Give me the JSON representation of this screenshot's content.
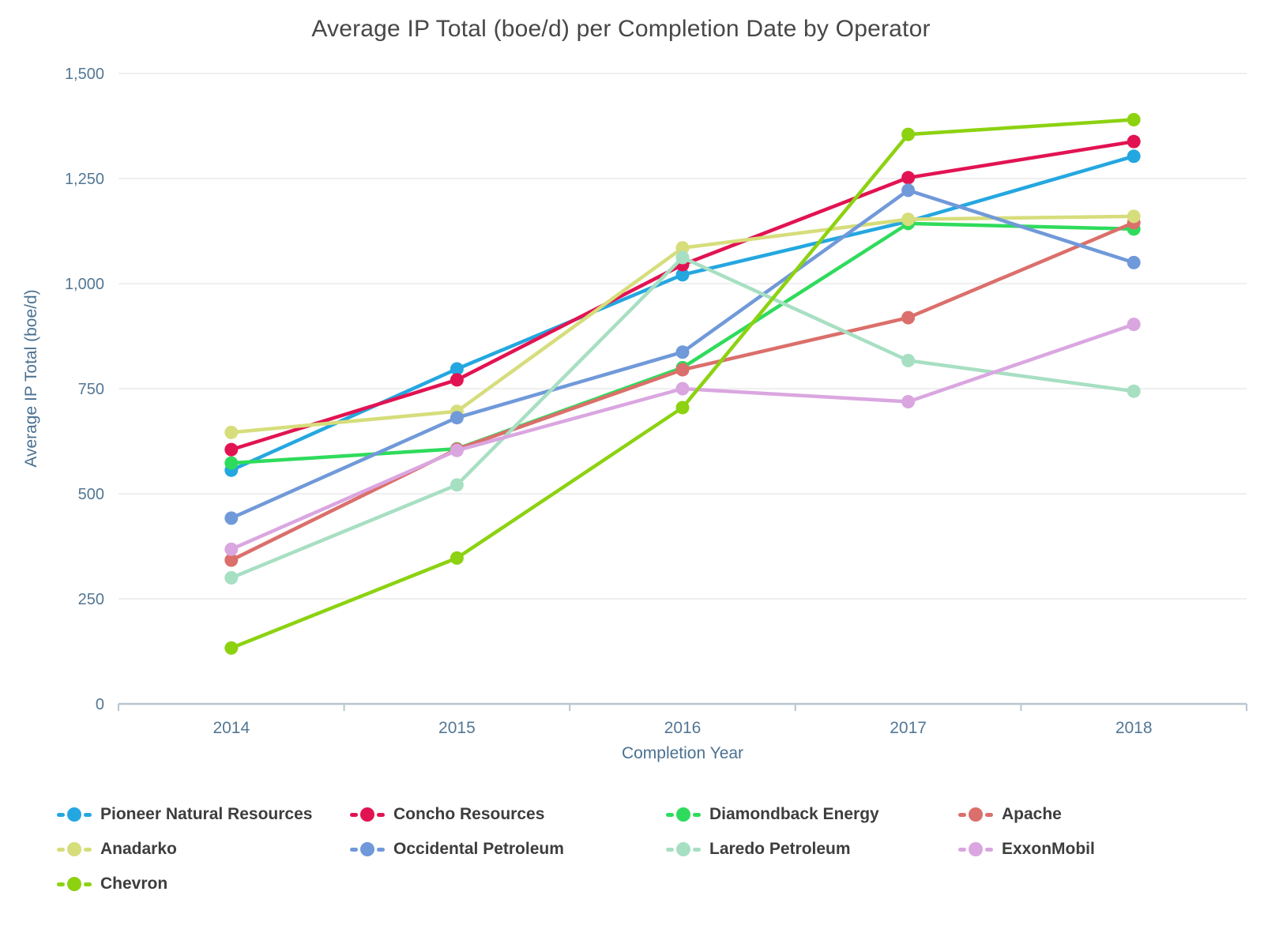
{
  "title": "Average IP Total (boe/d) per Completion Date by Operator",
  "chart_data": {
    "type": "line",
    "title": "Average IP Total (boe/d) per Completion Date by Operator",
    "xlabel": "Completion Year",
    "ylabel": "Average IP Total (boe/d)",
    "categories": [
      "2014",
      "2015",
      "2016",
      "2017",
      "2018"
    ],
    "ylim": [
      0,
      1500
    ],
    "y_tick_step": 250,
    "y_ticks": [
      0,
      250,
      500,
      750,
      1000,
      1250,
      1500
    ],
    "grid": true,
    "legend_position": "bottom",
    "series": [
      {
        "name": "Pioneer Natural Resources",
        "color": "#24a7e0",
        "values": [
          556,
          797,
          1021,
          1148,
          1303
        ]
      },
      {
        "name": "Concho Resources",
        "color": "#e21352",
        "values": [
          605,
          771,
          1045,
          1252,
          1338
        ]
      },
      {
        "name": "Diamondback Energy",
        "color": "#2fdb5c",
        "values": [
          573,
          607,
          800,
          1143,
          1130
        ]
      },
      {
        "name": "Apache",
        "color": "#db6f6b",
        "values": [
          342,
          606,
          795,
          919,
          1145
        ]
      },
      {
        "name": "Anadarko",
        "color": "#d6dd7b",
        "values": [
          646,
          696,
          1085,
          1153,
          1160
        ]
      },
      {
        "name": "Occidental Petroleum",
        "color": "#7099d9",
        "values": [
          442,
          681,
          837,
          1222,
          1050
        ]
      },
      {
        "name": "Laredo Petroleum",
        "color": "#a7dfc2",
        "values": [
          300,
          521,
          1062,
          817,
          744
        ]
      },
      {
        "name": "ExxonMobil",
        "color": "#daa6e0",
        "values": [
          368,
          603,
          750,
          719,
          903
        ]
      },
      {
        "name": "Chevron",
        "color": "#8cd211",
        "values": [
          133,
          347,
          705,
          1355,
          1390
        ]
      }
    ]
  },
  "colors": {
    "grid_line": "#eaeaea",
    "axis_line": "#b9c6d0",
    "tick_label": "#537794",
    "axis_title": "#4a7191",
    "title_text": "#474747",
    "legend_text": "#3d3d3d",
    "background": "#ffffff"
  }
}
